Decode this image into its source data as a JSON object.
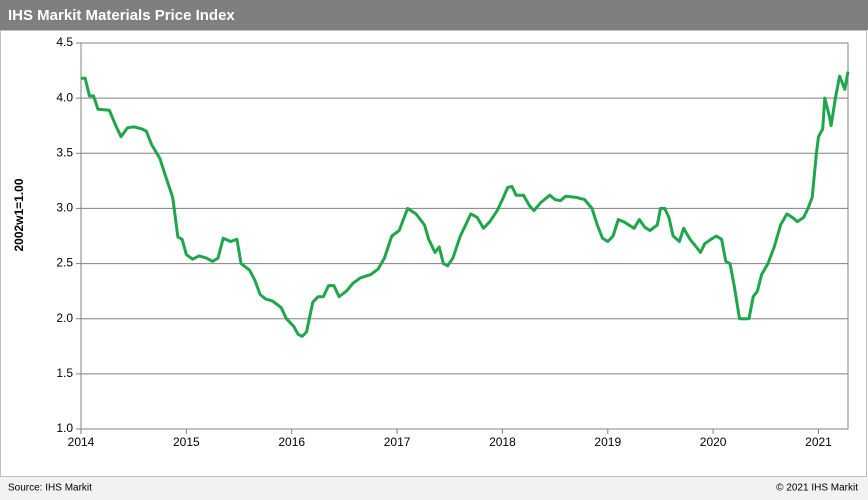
{
  "chart_data": {
    "type": "line",
    "title": "IHS Markit Materials Price Index",
    "y_label": "2002w1=1.00",
    "source": "Source: IHS Markit",
    "copyright": "© 2021 IHS Markit",
    "xlim": [
      2014,
      2021.28
    ],
    "xticks": [
      2014,
      2015,
      2016,
      2017,
      2018,
      2019,
      2020,
      2021
    ],
    "ylim": [
      1.0,
      4.5
    ],
    "yticks": [
      {
        "value": 1.0,
        "label": "1.0"
      },
      {
        "value": 1.5,
        "label": "1.5"
      },
      {
        "value": 2.0,
        "label": "2.0"
      },
      {
        "value": 2.5,
        "label": "2.5"
      },
      {
        "value": 3.0,
        "label": "3.0"
      },
      {
        "value": 3.5,
        "label": "3.5"
      },
      {
        "value": 4.0,
        "label": "4.0"
      },
      {
        "value": 4.5,
        "label": "4.5"
      }
    ],
    "grid": true,
    "x": [
      2014.0,
      2014.04,
      2014.08,
      2014.12,
      2014.16,
      2014.27,
      2014.33,
      2014.38,
      2014.44,
      2014.5,
      2014.58,
      2014.62,
      2014.67,
      2014.75,
      2014.8,
      2014.87,
      2014.92,
      2014.96,
      2015.0,
      2015.06,
      2015.12,
      2015.19,
      2015.25,
      2015.3,
      2015.35,
      2015.42,
      2015.48,
      2015.52,
      2015.6,
      2015.65,
      2015.7,
      2015.75,
      2015.82,
      2015.9,
      2015.95,
      2016.02,
      2016.06,
      2016.1,
      2016.14,
      2016.2,
      2016.25,
      2016.3,
      2016.35,
      2016.4,
      2016.45,
      2016.52,
      2016.58,
      2016.65,
      2016.75,
      2016.82,
      2016.88,
      2016.95,
      2017.02,
      2017.1,
      2017.18,
      2017.26,
      2017.3,
      2017.36,
      2017.4,
      2017.44,
      2017.48,
      2017.53,
      2017.6,
      2017.65,
      2017.7,
      2017.76,
      2017.82,
      2017.88,
      2017.95,
      2018.0,
      2018.05,
      2018.09,
      2018.13,
      2018.2,
      2018.26,
      2018.3,
      2018.36,
      2018.45,
      2018.5,
      2018.55,
      2018.6,
      2018.7,
      2018.78,
      2018.85,
      2018.9,
      2018.95,
      2019.0,
      2019.05,
      2019.1,
      2019.15,
      2019.2,
      2019.25,
      2019.3,
      2019.35,
      2019.4,
      2019.47,
      2019.5,
      2019.54,
      2019.58,
      2019.62,
      2019.68,
      2019.72,
      2019.78,
      2019.84,
      2019.88,
      2019.92,
      2019.98,
      2020.03,
      2020.08,
      2020.12,
      2020.16,
      2020.2,
      2020.25,
      2020.3,
      2020.34,
      2020.38,
      2020.42,
      2020.46,
      2020.52,
      2020.58,
      2020.64,
      2020.7,
      2020.75,
      2020.8,
      2020.86,
      2020.9,
      2020.94,
      2020.98,
      2021.0,
      2021.04,
      2021.06,
      2021.1,
      2021.12,
      2021.16,
      2021.2,
      2021.25,
      2021.28
    ],
    "series": [
      {
        "color": "#1fa64a",
        "values": [
          4.18,
          4.18,
          4.02,
          4.02,
          3.9,
          3.89,
          3.75,
          3.65,
          3.73,
          3.74,
          3.72,
          3.7,
          3.58,
          3.45,
          3.3,
          3.1,
          2.74,
          2.72,
          2.58,
          2.54,
          2.57,
          2.55,
          2.52,
          2.55,
          2.73,
          2.7,
          2.72,
          2.5,
          2.44,
          2.35,
          2.22,
          2.18,
          2.16,
          2.1,
          2.0,
          1.93,
          1.86,
          1.84,
          1.88,
          2.15,
          2.2,
          2.2,
          2.3,
          2.3,
          2.2,
          2.25,
          2.32,
          2.37,
          2.4,
          2.45,
          2.55,
          2.75,
          2.8,
          3.0,
          2.95,
          2.85,
          2.72,
          2.6,
          2.65,
          2.5,
          2.48,
          2.55,
          2.75,
          2.85,
          2.95,
          2.92,
          2.82,
          2.88,
          2.98,
          3.08,
          3.19,
          3.2,
          3.12,
          3.12,
          3.02,
          2.98,
          3.05,
          3.12,
          3.08,
          3.07,
          3.11,
          3.1,
          3.08,
          3.0,
          2.85,
          2.73,
          2.7,
          2.75,
          2.9,
          2.88,
          2.85,
          2.82,
          2.9,
          2.83,
          2.8,
          2.85,
          3.0,
          3.0,
          2.92,
          2.75,
          2.7,
          2.82,
          2.72,
          2.65,
          2.6,
          2.68,
          2.72,
          2.75,
          2.72,
          2.52,
          2.5,
          2.3,
          2.0,
          2.0,
          2.0,
          2.2,
          2.25,
          2.4,
          2.5,
          2.65,
          2.85,
          2.95,
          2.92,
          2.88,
          2.92,
          3.0,
          3.1,
          3.5,
          3.65,
          3.72,
          4.0,
          3.85,
          3.75,
          4.0,
          4.2,
          4.08,
          4.24
        ]
      }
    ]
  }
}
